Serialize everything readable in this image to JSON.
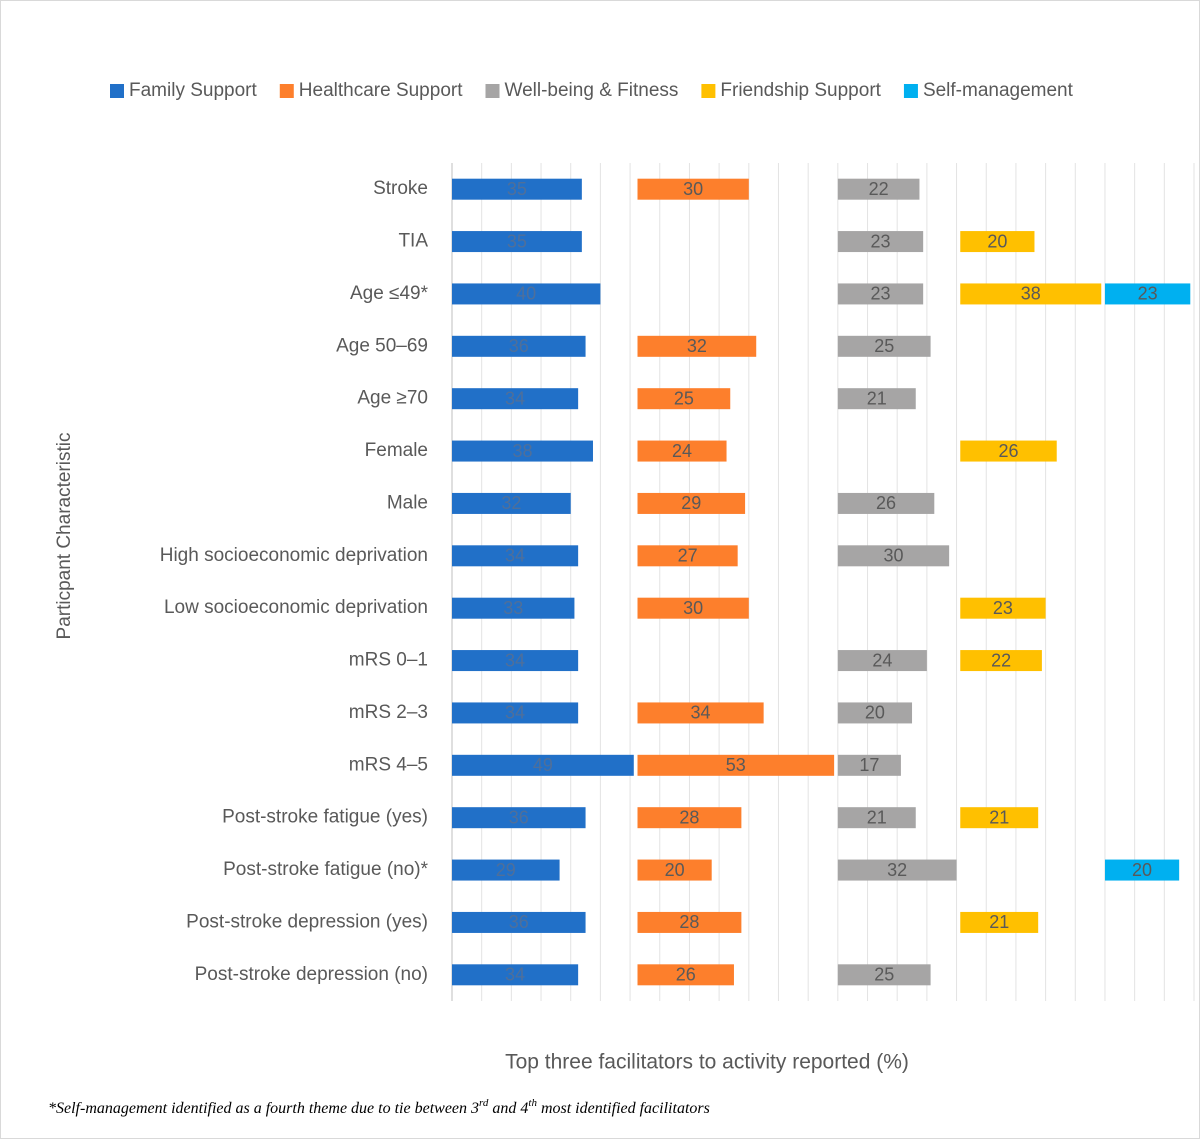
{
  "chart_data": {
    "type": "bar",
    "orientation": "horizontal",
    "y_label": "Particpant Characteristic",
    "x_label": "Top three facilitators to activity reported (%)",
    "footnote": [
      "*Self-management identified as a fourth theme due to tie between 3",
      "rd",
      " and 4",
      "th",
      " most identified facilitators"
    ],
    "legend": "top",
    "grid": true,
    "xlim": [
      0,
      200
    ],
    "xticks": [
      0,
      8,
      16,
      24,
      32,
      40,
      48,
      56,
      64,
      72,
      80,
      88,
      96,
      104,
      112,
      120,
      128,
      136,
      144,
      152,
      160,
      168,
      176,
      184,
      192,
      200
    ],
    "categories": [
      "Stroke",
      "TIA",
      "Age ≤49*",
      "Age 50–69",
      "Age ≥70",
      "Female",
      "Male",
      "High socioeconomic deprivation",
      "Low socioeconomic deprivation",
      "mRS 0–1",
      "mRS 2–3",
      "mRS 4–5",
      "Post-stroke fatigue (yes)",
      "Post-stroke fatigue (no)*",
      "Post-stroke depression (yes)",
      "Post-stroke depression (no)"
    ],
    "series": [
      {
        "name": "Family Support",
        "color": "#2170c8",
        "values": [
          35,
          35,
          40,
          36,
          34,
          38,
          32,
          34,
          33,
          34,
          34,
          49,
          36,
          29,
          36,
          34
        ]
      },
      {
        "name": "Healthcare Support",
        "color": "#fd7f2c",
        "values": [
          30,
          null,
          null,
          32,
          25,
          24,
          29,
          27,
          30,
          null,
          34,
          53,
          28,
          20,
          28,
          26
        ]
      },
      {
        "name": "Well-being & Fitness",
        "color": "#a6a5a5",
        "values": [
          22,
          23,
          23,
          25,
          21,
          null,
          26,
          30,
          null,
          24,
          20,
          17,
          21,
          32,
          null,
          25
        ]
      },
      {
        "name": "Friendship Support",
        "color": "#ffc000",
        "values": [
          null,
          20,
          38,
          null,
          null,
          26,
          null,
          null,
          23,
          22,
          null,
          null,
          21,
          null,
          21,
          null
        ]
      },
      {
        "name": "Self-management",
        "color": "#00b0f0",
        "values": [
          null,
          null,
          23,
          null,
          null,
          null,
          null,
          null,
          null,
          null,
          null,
          null,
          null,
          20,
          null,
          null
        ]
      }
    ]
  }
}
